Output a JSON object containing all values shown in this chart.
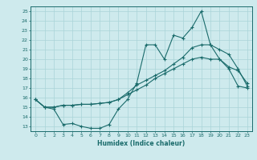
{
  "xlabel": "Humidex (Indice chaleur)",
  "bg_color": "#ceeaed",
  "grid_color": "#aad4d8",
  "line_color": "#1a6b6b",
  "xlim": [
    -0.5,
    23.5
  ],
  "ylim": [
    12.5,
    25.5
  ],
  "yticks": [
    13,
    14,
    15,
    16,
    17,
    18,
    19,
    20,
    21,
    22,
    23,
    24,
    25
  ],
  "xticks": [
    0,
    1,
    2,
    3,
    4,
    5,
    6,
    7,
    8,
    9,
    10,
    11,
    12,
    13,
    14,
    15,
    16,
    17,
    18,
    19,
    20,
    21,
    22,
    23
  ],
  "line1_x": [
    0,
    1,
    2,
    3,
    4,
    5,
    6,
    7,
    8,
    9,
    10,
    11,
    12,
    13,
    14,
    15,
    16,
    17,
    18,
    19,
    20,
    21,
    22,
    23
  ],
  "line1_y": [
    15.8,
    15.0,
    14.8,
    13.2,
    13.3,
    13.0,
    12.8,
    12.8,
    13.2,
    14.8,
    15.8,
    17.5,
    21.5,
    21.5,
    20.0,
    22.5,
    22.2,
    23.3,
    25.0,
    21.5,
    20.0,
    19.0,
    17.2,
    17.0
  ],
  "line2_x": [
    0,
    1,
    2,
    3,
    4,
    5,
    6,
    7,
    8,
    9,
    10,
    11,
    12,
    13,
    14,
    15,
    16,
    17,
    18,
    19,
    20,
    21,
    22,
    23
  ],
  "line2_y": [
    15.8,
    15.0,
    15.0,
    15.2,
    15.2,
    15.3,
    15.3,
    15.4,
    15.5,
    15.8,
    16.5,
    17.3,
    17.8,
    18.3,
    18.8,
    19.5,
    20.2,
    21.2,
    21.5,
    21.5,
    21.0,
    20.5,
    19.0,
    17.2
  ],
  "line3_x": [
    0,
    1,
    2,
    3,
    4,
    5,
    6,
    7,
    8,
    9,
    10,
    11,
    12,
    13,
    14,
    15,
    16,
    17,
    18,
    19,
    20,
    21,
    22,
    23
  ],
  "line3_y": [
    15.8,
    15.0,
    15.0,
    15.2,
    15.2,
    15.3,
    15.3,
    15.4,
    15.5,
    15.8,
    16.3,
    16.8,
    17.3,
    18.0,
    18.5,
    19.0,
    19.5,
    20.0,
    20.2,
    20.0,
    20.0,
    19.2,
    18.8,
    17.5
  ]
}
